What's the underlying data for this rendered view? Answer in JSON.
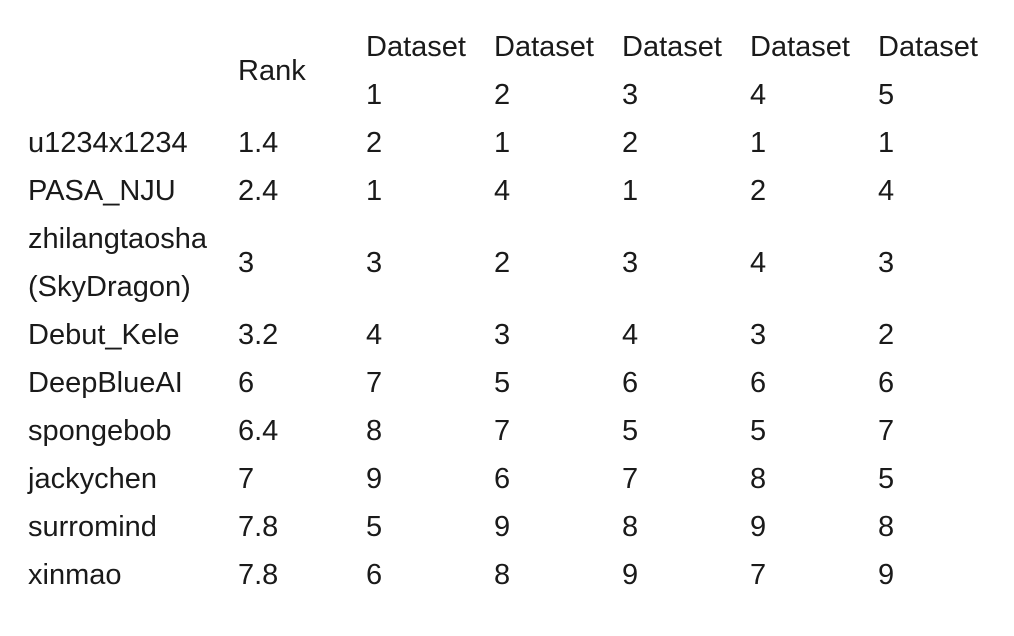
{
  "table": {
    "columns": [
      "",
      "Rank",
      "Dataset\n1",
      "Dataset\n2",
      "Dataset\n3",
      "Dataset\n4",
      "Dataset\n5"
    ],
    "header": {
      "rank": "Rank",
      "datasets": [
        {
          "line1": "Dataset",
          "line2": "1"
        },
        {
          "line1": "Dataset",
          "line2": "2"
        },
        {
          "line1": "Dataset",
          "line2": "3"
        },
        {
          "line1": "Dataset",
          "line2": "4"
        },
        {
          "line1": "Dataset",
          "line2": "5"
        }
      ]
    },
    "rows": [
      {
        "name": [
          "u1234x1234"
        ],
        "rank": "1.4",
        "d": [
          "2",
          "1",
          "2",
          "1",
          "1"
        ]
      },
      {
        "name": [
          "PASA_NJU"
        ],
        "rank": "2.4",
        "d": [
          "1",
          "4",
          "1",
          "2",
          "4"
        ]
      },
      {
        "name": [
          "zhilangtaosha",
          "(SkyDragon)"
        ],
        "rank": "3",
        "d": [
          "3",
          "2",
          "3",
          "4",
          "3"
        ]
      },
      {
        "name": [
          "Debut_Kele"
        ],
        "rank": "3.2",
        "d": [
          "4",
          "3",
          "4",
          "3",
          "2"
        ]
      },
      {
        "name": [
          "DeepBlueAI"
        ],
        "rank": "6",
        "d": [
          "7",
          "5",
          "6",
          "6",
          "6"
        ]
      },
      {
        "name": [
          "spongebob"
        ],
        "rank": "6.4",
        "d": [
          "8",
          "7",
          "5",
          "5",
          "7"
        ]
      },
      {
        "name": [
          "jackychen"
        ],
        "rank": "7",
        "d": [
          "9",
          "6",
          "7",
          "8",
          "5"
        ]
      },
      {
        "name": [
          "surromind"
        ],
        "rank": "7.8",
        "d": [
          "5",
          "9",
          "8",
          "9",
          "8"
        ]
      },
      {
        "name": [
          "xinmao"
        ],
        "rank": "7.8",
        "d": [
          "6",
          "8",
          "9",
          "7",
          "9"
        ]
      }
    ]
  }
}
